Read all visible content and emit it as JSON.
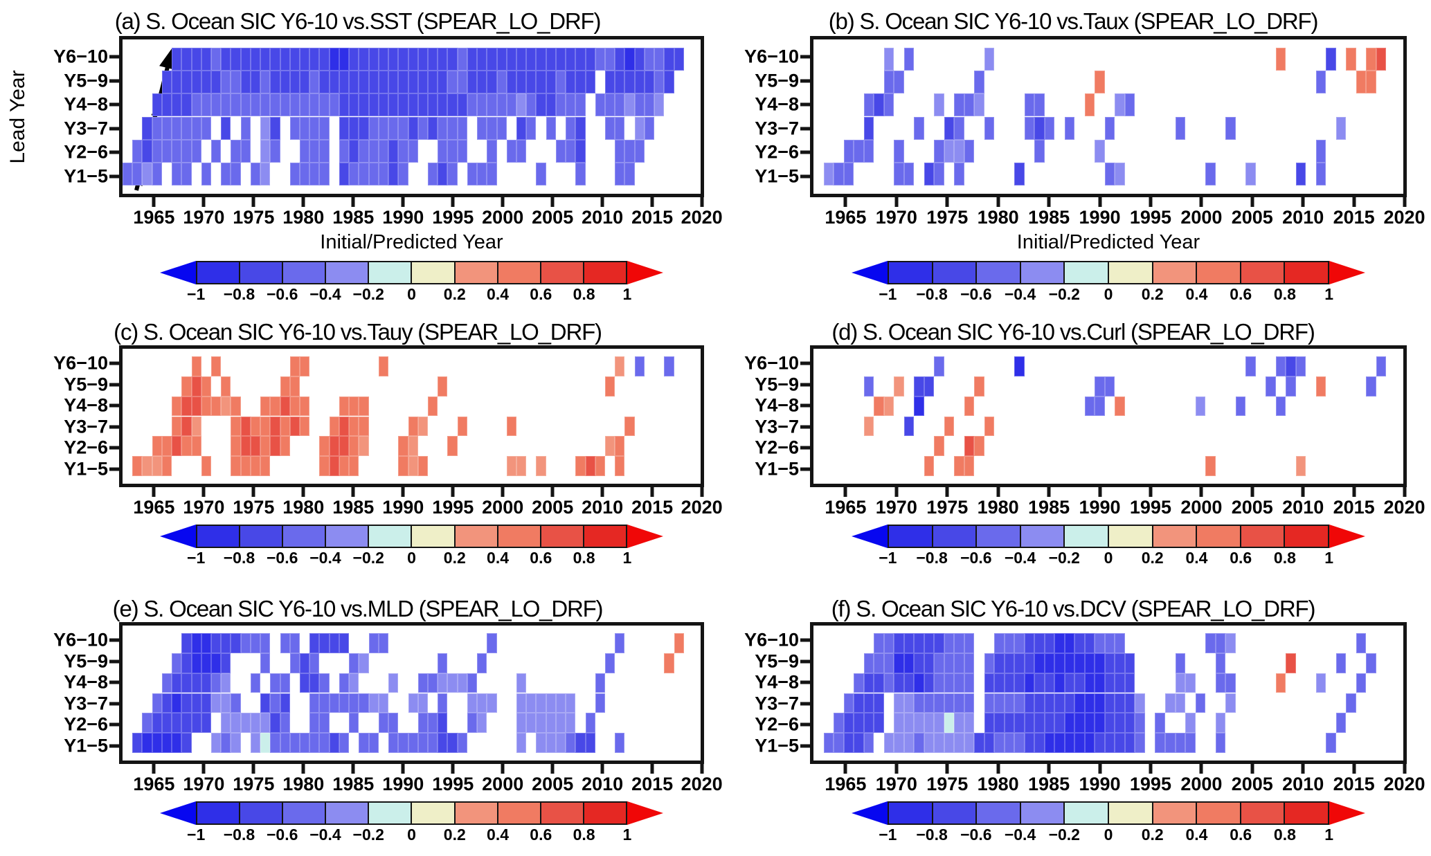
{
  "figure": {
    "kind": "six-panel correlation heatmap figure",
    "model": "SPEAR_LO_DRF"
  },
  "axes": {
    "x_tick_labels": [
      "1965",
      "1970",
      "1975",
      "1980",
      "1985",
      "1990",
      "1995",
      "2000",
      "2005",
      "2010",
      "2015",
      "2020"
    ],
    "x_tick_years": [
      1965,
      1970,
      1975,
      1980,
      1985,
      1990,
      1995,
      2000,
      2005,
      2010,
      2015,
      2020
    ],
    "x_domain": [
      1961.5,
      2020.2
    ],
    "row_labels": [
      "Y6−10",
      "Y5−9",
      "Y4−8",
      "Y3−7",
      "Y2−6",
      "Y1−5"
    ],
    "row_keys": [
      "Y6-10",
      "Y5-9",
      "Y4-8",
      "Y3-7",
      "Y2-6",
      "Y1-5"
    ]
  },
  "colorbar": {
    "tick_labels": [
      "−1",
      "−0.8",
      "−0.6",
      "−0.4",
      "−0.2",
      "0",
      "0.2",
      "0.4",
      "0.6",
      "0.8",
      "1"
    ],
    "segment_colors": [
      "#2f2fe8",
      "#4848e7",
      "#6a6aec",
      "#8c8cf1",
      "#cbefea",
      "#efefc8",
      "#f2947c",
      "#f07b62",
      "#e85246",
      "#e52823"
    ],
    "left_arrow_color": "#0707f0",
    "right_arrow_color": "#f00707"
  },
  "level_colors": {
    "a": "#2f2fe8",
    "b": "#4848e7",
    "c": "#6a6aec",
    "d": "#8c8cf1",
    "e": "#cbefea",
    "f": "#efefc8",
    "g": "#f2947c",
    "h": "#f07b62",
    "i": "#e85246",
    "j": "#e52823"
  },
  "chart_data": {
    "type": "heatmap",
    "description": "Correlation (-1 to 1) of Southern Ocean SIC Y6-10 hindcasts with other fields, by lead-year row and initial/predicted year. Cell letters map to correlation bins: a=[-1,-0.8], b=[-0.8,-0.6], c=[-0.6,-0.4], d=[-0.4,-0.2], e=[-0.2,0], f=[0,0.2], g=[0.2,0.4], h=[0.4,0.6], i=[0.6,0.8], j=[0.8,1]; '.'=not significant (white). Strings start at year 1962, one character per year.",
    "start_year": 1962,
    "legend_bins": {
      "a": "-1 to -0.8",
      "b": "-0.8 to -0.6",
      "c": "-0.6 to -0.4",
      "d": "-0.4 to -0.2",
      "e": "-0.2 to 0",
      "f": "0 to 0.2",
      "g": "0.2 to 0.4",
      "h": "0.4 to 0.6",
      "i": "0.6 to 0.8",
      "j": "0.8 to 1"
    },
    "panels": [
      {
        "id": "a",
        "title": "(a) S. Ocean SIC Y6-10 vs.SST (SPEAR_LO_DRF)",
        "x_label": "Initial/Predicted Year",
        "y_label": "Lead Year",
        "annotation": "Predicted Year",
        "rows": {
          "Y6-10": ".....bbbbcbbbbbbbbbbbaabbbbbbbbbbbcbbbbbbbbbbbbbccbabccbb.",
          "Y5-9": "....bbbbbbccbbcbbbbcbbbbbbbbbbbbbccbbbcbbbbbcbbb.bbbbbcb..",
          "Y4-8": "...bbbbcccccccccccccccbbbbbbbbbbbbbcccccdcbbccc.cccdccd...",
          "Y3-7": "..bcccccc.b.c.db.cccc.bbbccccbcbccc.ccc.bc.c.cb..cc.dc....",
          "Y2-6": ".cbccccc.c.cc.dc..ccc.cbcccbcc..ccc..c.cc...ccb...ccc.....",
          "Y1-5": "ccdc.cc.c.cc.cd..cccc.bccccbc..cbc.ccc....c...c...cc......"
        }
      },
      {
        "id": "b",
        "title": "(b) S. Ocean SIC Y6-10 vs.Taux (SPEAR_LO_DRF)",
        "x_label": "Initial/Predicted Year",
        "rows": {
          "Y6-10": ".......d.c.......d............................h....b.h.hi.",
          "Y5-9": ".......cc.......c...........h.....................c...hh..",
          "Y4-8": ".....cbc....d.ccd....cc....h..dc..........................",
          "Y3-7": ".....b....c..bc..c...cbc.c...c......c....c..........d.....",
          "Y2-6": "...ccc..c...cddc......c.....d.....................c.......",
          "Y1-5": ".dcc....cc.bc.c.....b........cd........c...d....b.c......."
        }
      },
      {
        "id": "c",
        "title": "(c) S. Ocean SIC Y6-10 vs.Tauy (SPEAR_LO_DRF)",
        "rows": {
          "Y6-10": ".......h.h.......hh.......h.......................g.c..c..",
          "Y5-9": "......hih.h.....hh..............h................h........",
          "Y4-8": ".....hiihhgh..hhihh...hhh......h..........................",
          "Y3-7": ".....hig...hihhihih..hihh....hg...h....h...........h......",
          "Y2-6": "...hhihh...hiihih...hiihg...hg...h...............gh.......",
          "Y1-5": ".hggh...h..hhhh.....hihh....hgh........gg.g...hih.h......."
        }
      },
      {
        "id": "d",
        "title": "(d) S. Ocean SIC Y6-10 vs.Curl (SPEAR_LO_DRF)",
        "rows": {
          "Y6-10": "............c.......a......................c..cbc.......c.",
          "Y5-9": ".....c..g.bb....h...........cc...............c.c..h....c..",
          "Y4-8": "......hg..a....h...........cc.h.......d...c...c...........",
          "Y3-7": ".....g...b...h...h........................................",
          "Y2-6": "............h..ih.........................................",
          "Y1-5": "...........h..hh.......................h........g........."
        }
      },
      {
        "id": "e",
        "title": "(e) S. Ocean SIC Y6-10 vs.MLD (SPEAR_LO_DRF)",
        "rows": {
          "Y6-10": "......baabbbccc.cc.bbbb..cc..........c............c.....h.",
          "Y5-9": ".....cbaaab...c..cbc...cd.......c...c............c.....h..",
          "Y4-8": "....cbbbbcd..c.cc.bbc.cd...d..ccdddc....d.......c.........",
          "Y3-7": "...cbabbbddc..bcb..ccccccdd..dd.c..ddd..dddddd..c.........",
          "Y2-6": "..cbbbbbb.dddddbc..cc..c..cc..ccb..cd...dddddd.c..........",
          "Y1-5": ".baaaab..dcd.deccccccbc.cc.cccccbbc.....d.dddcbb..c......."
        }
      },
      {
        "id": "f",
        "title": "(f) S. Ocean SIC Y6-10 vs.DCV (SPEAR_LO_DRF)",
        "rows": {
          "Y6-10": "......ccbbbbbccc..cccbbbaabbccc........ccd............c...",
          "Y5-9": ".....cccaabbcccc.cbbbbaaaaaaabbb....c...c......i....c..c..",
          "Y4-8": "....cbbcbbabcccc.bbbbabbabbaabbb....dd..cc....h...d...c...",
          "Y3-7": "...cbbb.ddcccccc.ccccbbbbbaaabbbd..dd.c..d...........c....",
          "Y2-6": "..cbbbb.dddddedd.bbbbbbbbaaaabbbc.c..d..d...........c.....",
          "Y1-5": ".ccbbc.dddcdddddbbcccbbaaaaabbbbc.cccc..c..........c......"
        }
      }
    ]
  }
}
